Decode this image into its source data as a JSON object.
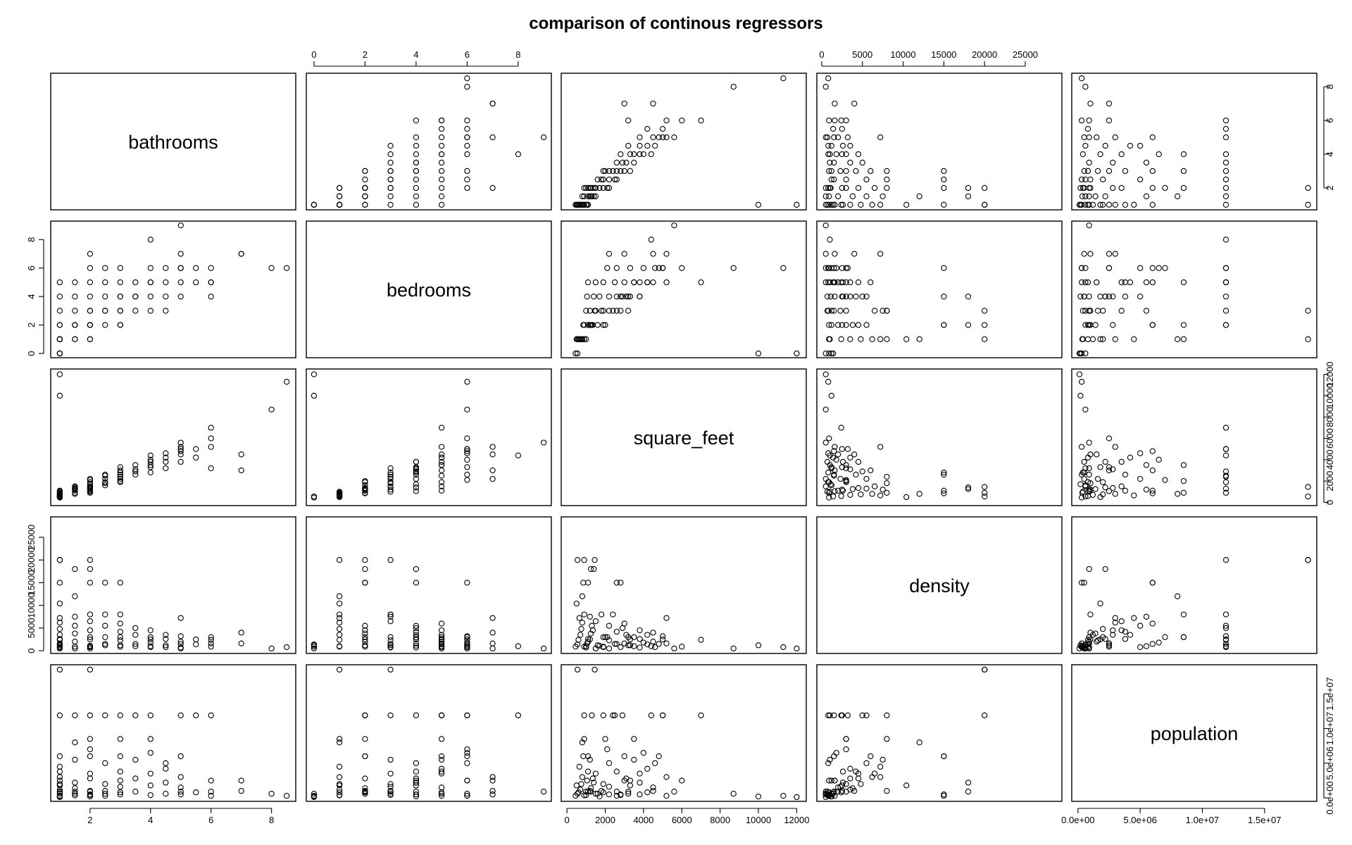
{
  "chart_data": {
    "type": "scatter",
    "title": "comparison of continous regressors",
    "variables": [
      "bathrooms",
      "bedrooms",
      "square_feet",
      "density",
      "population"
    ],
    "ranges": {
      "bathrooms": [
        0.7,
        8.8
      ],
      "bedrooms": [
        -0.3,
        9.3
      ],
      "square_feet": [
        -300,
        12500
      ],
      "density": [
        -600,
        29500
      ],
      "population": [
        -500000,
        19200000
      ]
    },
    "tick_labels": {
      "bathrooms": [
        "2",
        "4",
        "6",
        "8"
      ],
      "bedrooms": [
        "0",
        "2",
        "4",
        "6",
        "8"
      ],
      "square_feet": [
        "0",
        "2000",
        "4000",
        "6000",
        "8000",
        "10000",
        "12000"
      ],
      "density": [
        "0",
        "5000",
        "10000",
        "15000",
        "20000",
        "25000"
      ],
      "population": [
        "0.0e+00",
        "5.0e+06",
        "1.0e+07",
        "1.5e+07"
      ]
    },
    "tick_values": {
      "bathrooms": [
        2,
        4,
        6,
        8
      ],
      "bedrooms": [
        0,
        2,
        4,
        6,
        8
      ],
      "square_feet": [
        0,
        2000,
        4000,
        6000,
        8000,
        10000,
        12000
      ],
      "density": [
        0,
        5000,
        10000,
        15000,
        20000,
        25000
      ],
      "population": [
        0,
        5000000,
        10000000,
        15000000
      ]
    },
    "records": [
      [
        1,
        0,
        450,
        900,
        300000
      ],
      [
        1,
        0,
        550,
        1400,
        600000
      ],
      [
        1,
        1,
        600,
        2400,
        800000
      ],
      [
        1,
        1,
        700,
        3500,
        1200000
      ],
      [
        1,
        1,
        750,
        4800,
        2000000
      ],
      [
        1,
        1,
        800,
        6200,
        3000000
      ],
      [
        1,
        1,
        650,
        7200,
        4500000
      ],
      [
        1,
        1,
        500,
        10400,
        1800000
      ],
      [
        1,
        2,
        850,
        15000,
        6000000
      ],
      [
        1,
        2,
        900,
        20000,
        11900000
      ],
      [
        1,
        1,
        550,
        20000,
        18500000
      ],
      [
        1,
        0,
        12000,
        500,
        120000
      ],
      [
        1,
        0,
        10000,
        1200,
        200000
      ],
      [
        1,
        3,
        1000,
        700,
        900000
      ],
      [
        1,
        4,
        1050,
        1600,
        2500000
      ],
      [
        1,
        5,
        1100,
        2600,
        3800000
      ],
      [
        1.5,
        1,
        900,
        900,
        350000
      ],
      [
        1.5,
        2,
        1100,
        2000,
        900000
      ],
      [
        1.5,
        2,
        1250,
        3800,
        1400000
      ],
      [
        1.5,
        3,
        1200,
        7500,
        5500000
      ],
      [
        1.5,
        1,
        800,
        12000,
        8000000
      ],
      [
        1.5,
        4,
        1400,
        18000,
        2200000
      ],
      [
        1.5,
        5,
        1500,
        500,
        600000
      ],
      [
        1.5,
        2,
        1300,
        5500,
        11900000
      ],
      [
        2,
        1,
        1000,
        1000,
        400000
      ],
      [
        2,
        2,
        1200,
        2500,
        1000000
      ],
      [
        2,
        2,
        1350,
        4500,
        2800000
      ],
      [
        2,
        3,
        1500,
        6500,
        3500000
      ],
      [
        2,
        2,
        1100,
        15000,
        6000000
      ],
      [
        2,
        3,
        1450,
        20000,
        18500000
      ],
      [
        2,
        2,
        1250,
        18000,
        900000
      ],
      [
        2,
        4,
        1700,
        1100,
        200000
      ],
      [
        2,
        5,
        1900,
        800,
        11900000
      ],
      [
        2,
        6,
        2100,
        3000,
        7000000
      ],
      [
        2,
        7,
        2200,
        500,
        500000
      ],
      [
        2,
        1,
        900,
        8000,
        8500000
      ],
      [
        2.5,
        2,
        1600,
        1200,
        600000
      ],
      [
        2.5,
        3,
        1900,
        3000,
        2000000
      ],
      [
        2.5,
        4,
        2200,
        5500,
        5000000
      ],
      [
        2.5,
        3,
        1800,
        8000,
        1000000
      ],
      [
        2.5,
        5,
        2500,
        1500,
        11900000
      ],
      [
        2.5,
        6,
        2600,
        15000,
        300000
      ],
      [
        3,
        2,
        1900,
        900,
        800000
      ],
      [
        3,
        3,
        2200,
        2300,
        1600000
      ],
      [
        3,
        4,
        2600,
        4200,
        3800000
      ],
      [
        3,
        5,
        3000,
        6000,
        6000000
      ],
      [
        3,
        3,
        2400,
        8000,
        11900000
      ],
      [
        3,
        4,
        2800,
        15000,
        500000
      ],
      [
        3,
        6,
        3300,
        1200,
        2500000
      ],
      [
        3,
        2,
        2000,
        3000,
        8500000
      ],
      [
        3.5,
        3,
        2600,
        1500,
        900000
      ],
      [
        3.5,
        4,
        3100,
        3500,
        2800000
      ],
      [
        3.5,
        5,
        3500,
        1000,
        5500000
      ],
      [
        3.5,
        4,
        2900,
        5000,
        11900000
      ],
      [
        4,
        3,
        2800,
        800,
        400000
      ],
      [
        4,
        4,
        3300,
        2500,
        1800000
      ],
      [
        4,
        5,
        3800,
        4500,
        3500000
      ],
      [
        4,
        8,
        4400,
        1000,
        11900000
      ],
      [
        4,
        6,
        4000,
        1800,
        6500000
      ],
      [
        4,
        5,
        3500,
        3000,
        8500000
      ],
      [
        4.5,
        3,
        3200,
        1200,
        600000
      ],
      [
        4.5,
        4,
        3800,
        2600,
        2200000
      ],
      [
        4.5,
        5,
        4200,
        3500,
        4200000
      ],
      [
        4.5,
        6,
        4600,
        800,
        5000000
      ],
      [
        5,
        4,
        3800,
        700,
        500000
      ],
      [
        5,
        5,
        4500,
        2000,
        1500000
      ],
      [
        5,
        6,
        5000,
        3200,
        11900000
      ],
      [
        5,
        7,
        5200,
        7200,
        3000000
      ],
      [
        5,
        9,
        5600,
        500,
        900000
      ],
      [
        5,
        6,
        4800,
        1500,
        6000000
      ],
      [
        5.5,
        5,
        4200,
        1400,
        800000
      ],
      [
        5.5,
        6,
        5000,
        2500,
        11900000
      ],
      [
        6,
        5,
        5200,
        1600,
        300000
      ],
      [
        6,
        6,
        6000,
        900,
        2500000
      ],
      [
        6,
        4,
        3200,
        3000,
        900000
      ],
      [
        6,
        5,
        7000,
        2400,
        11900000
      ],
      [
        7,
        7,
        4500,
        4000,
        1000000
      ],
      [
        7,
        7,
        3000,
        1600,
        2500000
      ],
      [
        8,
        6,
        8700,
        500,
        600000
      ],
      [
        8.5,
        6,
        11300,
        800,
        300000
      ]
    ]
  }
}
